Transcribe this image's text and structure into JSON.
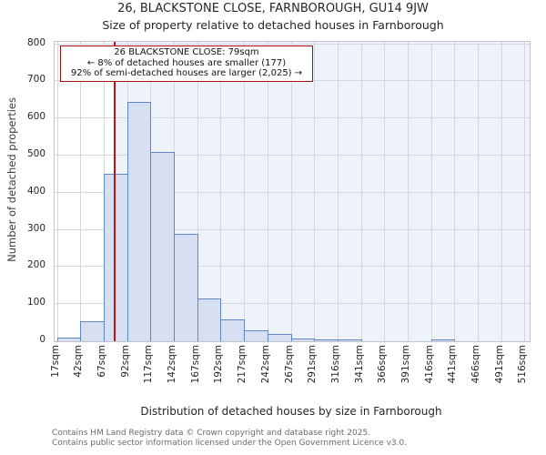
{
  "chart_data": {
    "type": "bar",
    "title": "26, BLACKSTONE CLOSE, FARNBOROUGH, GU14 9JW",
    "subtitle": "Size of property relative to detached houses in Farnborough",
    "xlabel": "Distribution of detached houses by size in Farnborough",
    "ylabel": "Number of detached properties",
    "ylim": [
      0,
      800
    ],
    "ytick_step": 100,
    "grid": true,
    "legend": false,
    "x_tick_labels": [
      "17sqm",
      "42sqm",
      "67sqm",
      "92sqm",
      "117sqm",
      "142sqm",
      "167sqm",
      "192sqm",
      "217sqm",
      "242sqm",
      "267sqm",
      "291sqm",
      "316sqm",
      "341sqm",
      "366sqm",
      "391sqm",
      "416sqm",
      "441sqm",
      "466sqm",
      "491sqm",
      "516sqm"
    ],
    "bin_edges_sqm": [
      17,
      42,
      67,
      92,
      117,
      142,
      167,
      192,
      217,
      242,
      267,
      291,
      316,
      341,
      366,
      391,
      416,
      441,
      466,
      491,
      516
    ],
    "values": [
      10,
      55,
      450,
      645,
      510,
      290,
      115,
      60,
      30,
      20,
      8,
      5,
      5,
      0,
      0,
      0,
      4,
      0,
      0,
      0
    ],
    "marker": {
      "label": "26 BLACKSTONE CLOSE",
      "value_sqm": 79
    },
    "annotation_lines": [
      "26 BLACKSTONE CLOSE: 79sqm",
      "← 8% of detached houses are smaller (177)",
      "92% of semi-detached houses are larger (2,025) →"
    ],
    "colors": {
      "bar_fill": "#d7e0f2",
      "bar_border": "#5d87c5",
      "shade_region": "#eef2fb",
      "gridline": "#d6d6dd",
      "marker_line": "#bb1518",
      "annotation_border": "#a50e12"
    }
  },
  "footer": {
    "line1": "Contains HM Land Registry data © Crown copyright and database right 2025.",
    "line2": "Contains public sector information licensed under the Open Government Licence v3.0."
  }
}
